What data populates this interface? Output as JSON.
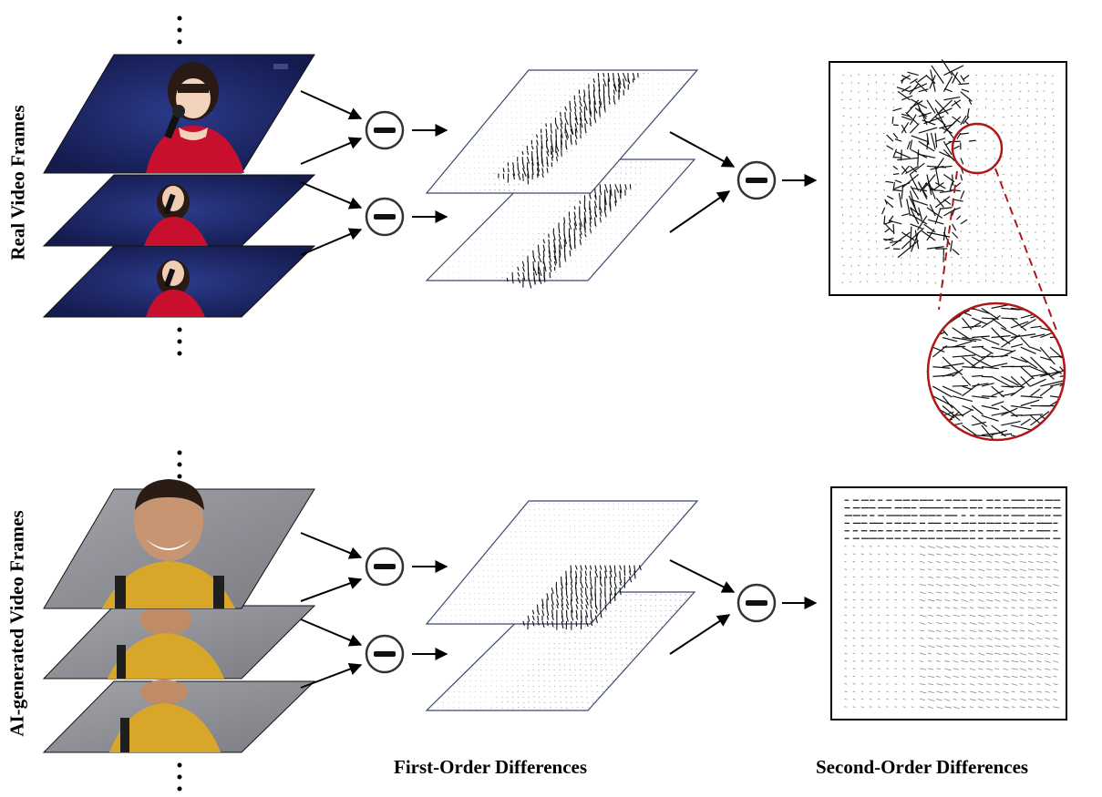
{
  "rows": [
    {
      "id": "real",
      "label": "Real Video Frames",
      "frame_theme": "stage-singer"
    },
    {
      "id": "ai",
      "label": "AI-generated Video Frames",
      "frame_theme": "smiling-man"
    }
  ],
  "operator_symbol": "minus-circle",
  "zoom_callout": true,
  "column_labels": {
    "first_order": "First-Order Differences",
    "second_order": "Second-Order Differences"
  },
  "colors": {
    "real_frame_bg": "#1f2a6b",
    "ai_frame_bg": "#8f8f96",
    "dress_red": "#c8102e",
    "shirt_yellow": "#d8a72a",
    "zoom_circle": "#b01818",
    "arrow": "#000000"
  }
}
